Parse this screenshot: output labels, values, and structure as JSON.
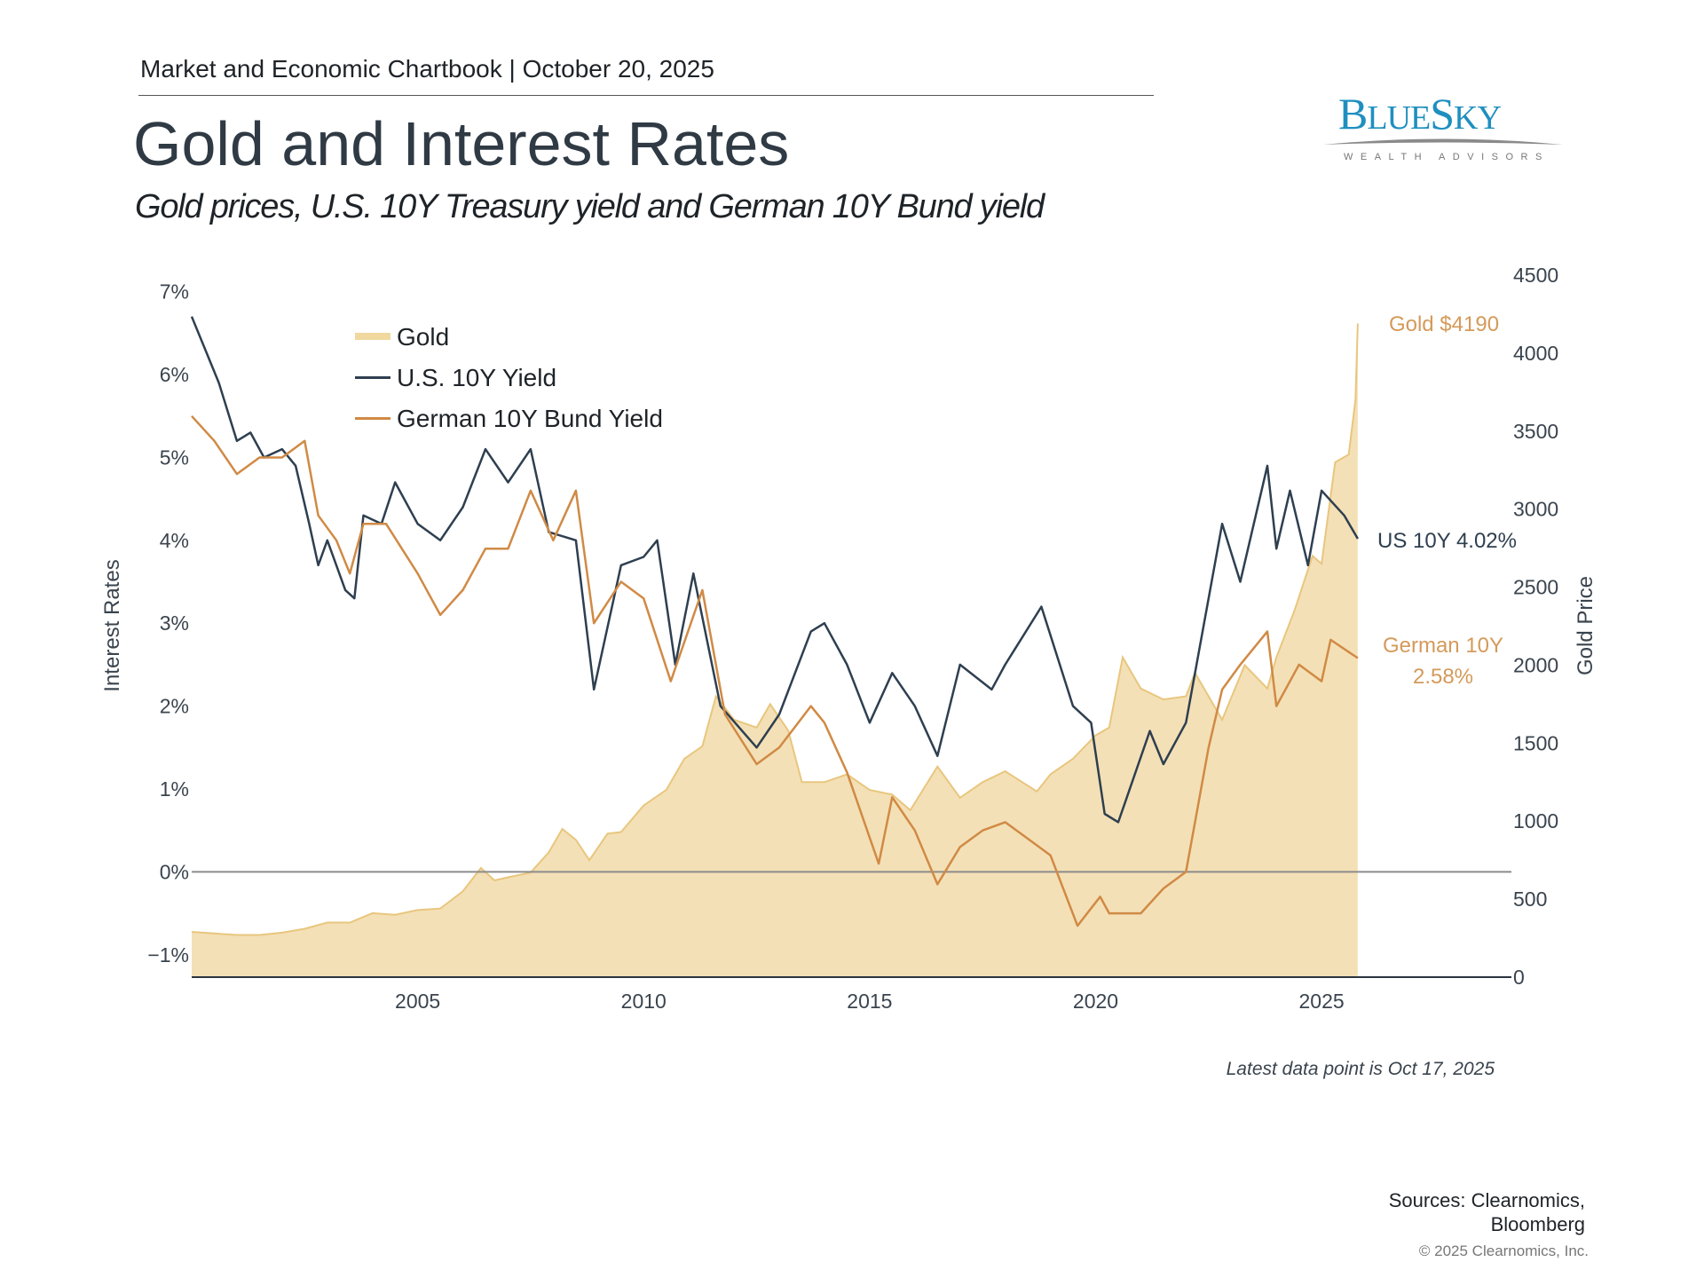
{
  "header": {
    "chartbook": "Market and Economic Chartbook | October 20, 2025",
    "title": "Gold and Interest Rates",
    "subtitle": "Gold prices, U.S. 10Y Treasury yield and German 10Y Bund yield"
  },
  "logo": {
    "brand": "BLUESKY",
    "tagline": "WEALTH ADVISORS",
    "color": "#1f8fbf"
  },
  "footer": {
    "latest": "Latest data point is Oct 17, 2025",
    "sources_line1": "Sources: Clearnomics,",
    "sources_line2": "Bloomberg",
    "copyright": "© 2025 Clearnomics, Inc."
  },
  "chart_data": {
    "type": "line",
    "xlabel": "",
    "ylabel": "Interest Rates",
    "y2label": "Gold Price",
    "xlim": [
      2000,
      2029.2
    ],
    "ylim": [
      -1.27,
      7.2
    ],
    "y2lim": [
      0,
      4500
    ],
    "x_ticks": [
      2005,
      2010,
      2015,
      2020,
      2025
    ],
    "y_ticks": [
      {
        "v": -1,
        "label": "−1%"
      },
      {
        "v": 0,
        "label": "0%"
      },
      {
        "v": 1,
        "label": "1%"
      },
      {
        "v": 2,
        "label": "2%"
      },
      {
        "v": 3,
        "label": "3%"
      },
      {
        "v": 4,
        "label": "4%"
      },
      {
        "v": 5,
        "label": "5%"
      },
      {
        "v": 6,
        "label": "6%"
      },
      {
        "v": 7,
        "label": "7%"
      }
    ],
    "y2_ticks": [
      0,
      500,
      1000,
      1500,
      2000,
      2500,
      3000,
      3500,
      4000,
      4500
    ],
    "zero_line": true,
    "grid": false,
    "legend_placement": "top-left",
    "legend": [
      "Gold",
      "U.S. 10Y Yield",
      "German 10Y Bund Yield"
    ],
    "annotations": {
      "gold": "Gold $4190",
      "us": "US 10Y 4.02%",
      "german_1": "German 10Y",
      "german_2": "2.58%"
    },
    "series": [
      {
        "name": "Gold",
        "axis": "right",
        "kind": "area",
        "color": "#e8c67e",
        "fill": "#f4e0b6",
        "x": [
          2000,
          2000.5,
          2001,
          2001.5,
          2002,
          2002.5,
          2003,
          2003.5,
          2004,
          2004.5,
          2005,
          2005.5,
          2006,
          2006.4,
          2006.7,
          2007,
          2007.5,
          2007.9,
          2008.2,
          2008.5,
          2008.8,
          2009.2,
          2009.5,
          2010,
          2010.5,
          2010.9,
          2011.3,
          2011.6,
          2012,
          2012.5,
          2012.8,
          2013.2,
          2013.5,
          2014,
          2014.5,
          2015,
          2015.5,
          2015.9,
          2016.5,
          2017,
          2017.5,
          2018,
          2018.7,
          2019,
          2019.5,
          2020,
          2020.3,
          2020.6,
          2021,
          2021.5,
          2022,
          2022.2,
          2022.8,
          2023.3,
          2023.8,
          2024,
          2024.4,
          2024.8,
          2025,
          2025.3,
          2025.6,
          2025.75,
          2025.8
        ],
        "y": [
          290,
          280,
          270,
          270,
          285,
          310,
          350,
          350,
          410,
          400,
          430,
          440,
          550,
          700,
          620,
          640,
          670,
          800,
          950,
          880,
          750,
          920,
          930,
          1100,
          1200,
          1400,
          1480,
          1800,
          1650,
          1600,
          1750,
          1580,
          1250,
          1250,
          1300,
          1200,
          1170,
          1070,
          1350,
          1150,
          1250,
          1320,
          1190,
          1300,
          1400,
          1550,
          1600,
          2050,
          1850,
          1780,
          1800,
          1950,
          1650,
          2000,
          1850,
          2050,
          2350,
          2700,
          2650,
          3300,
          3350,
          3700,
          4190
        ]
      },
      {
        "name": "U.S. 10Y Yield",
        "axis": "left",
        "kind": "line",
        "color": "#2e3f50",
        "x": [
          2000,
          2000.3,
          2000.6,
          2001,
          2001.3,
          2001.6,
          2002,
          2002.3,
          2002.6,
          2002.8,
          2003,
          2003.4,
          2003.6,
          2003.8,
          2004.2,
          2004.5,
          2005,
          2005.5,
          2006,
          2006.5,
          2007,
          2007.5,
          2007.9,
          2008.5,
          2008.9,
          2009.5,
          2010,
          2010.3,
          2010.7,
          2011.1,
          2011.7,
          2012.5,
          2013,
          2013.7,
          2014,
          2014.5,
          2015,
          2015.5,
          2016,
          2016.5,
          2017,
          2017.7,
          2018,
          2018.8,
          2019.5,
          2019.9,
          2020.2,
          2020.5,
          2021.2,
          2021.5,
          2022,
          2022.8,
          2023.2,
          2023.8,
          2024,
          2024.3,
          2024.7,
          2025,
          2025.5,
          2025.8
        ],
        "y": [
          6.7,
          6.3,
          5.9,
          5.2,
          5.3,
          5.0,
          5.1,
          4.9,
          4.2,
          3.7,
          4.0,
          3.4,
          3.3,
          4.3,
          4.2,
          4.7,
          4.2,
          4.0,
          4.4,
          5.1,
          4.7,
          5.1,
          4.1,
          4.0,
          2.2,
          3.7,
          3.8,
          4.0,
          2.5,
          3.6,
          2.0,
          1.5,
          1.9,
          2.9,
          3.0,
          2.5,
          1.8,
          2.4,
          2.0,
          1.4,
          2.5,
          2.2,
          2.5,
          3.2,
          2.0,
          1.8,
          0.7,
          0.6,
          1.7,
          1.3,
          1.8,
          4.2,
          3.5,
          4.9,
          3.9,
          4.6,
          3.7,
          4.6,
          4.3,
          4.02
        ]
      },
      {
        "name": "German 10Y Bund Yield",
        "axis": "left",
        "kind": "line",
        "color": "#d08a45",
        "x": [
          2000,
          2000.5,
          2001,
          2001.5,
          2002,
          2002.5,
          2002.8,
          2003.2,
          2003.5,
          2003.8,
          2004.3,
          2005,
          2005.5,
          2006,
          2006.5,
          2007,
          2007.5,
          2008,
          2008.5,
          2008.9,
          2009.5,
          2010,
          2010.6,
          2011.3,
          2011.8,
          2012.5,
          2013,
          2013.7,
          2014,
          2014.5,
          2015.2,
          2015.5,
          2016,
          2016.5,
          2017,
          2017.5,
          2018,
          2018.5,
          2019,
          2019.6,
          2020.1,
          2020.3,
          2021,
          2021.5,
          2022,
          2022.5,
          2022.8,
          2023.2,
          2023.8,
          2024,
          2024.5,
          2025,
          2025.2,
          2025.8
        ],
        "y": [
          5.5,
          5.2,
          4.8,
          5.0,
          5.0,
          5.2,
          4.3,
          4.0,
          3.6,
          4.2,
          4.2,
          3.6,
          3.1,
          3.4,
          3.9,
          3.9,
          4.6,
          4.0,
          4.6,
          3.0,
          3.5,
          3.3,
          2.3,
          3.4,
          1.9,
          1.3,
          1.5,
          2.0,
          1.8,
          1.2,
          0.1,
          0.9,
          0.5,
          -0.15,
          0.3,
          0.5,
          0.6,
          0.4,
          0.2,
          -0.65,
          -0.3,
          -0.5,
          -0.5,
          -0.2,
          0.0,
          1.5,
          2.2,
          2.5,
          2.9,
          2.0,
          2.5,
          2.3,
          2.8,
          2.58
        ]
      }
    ]
  }
}
